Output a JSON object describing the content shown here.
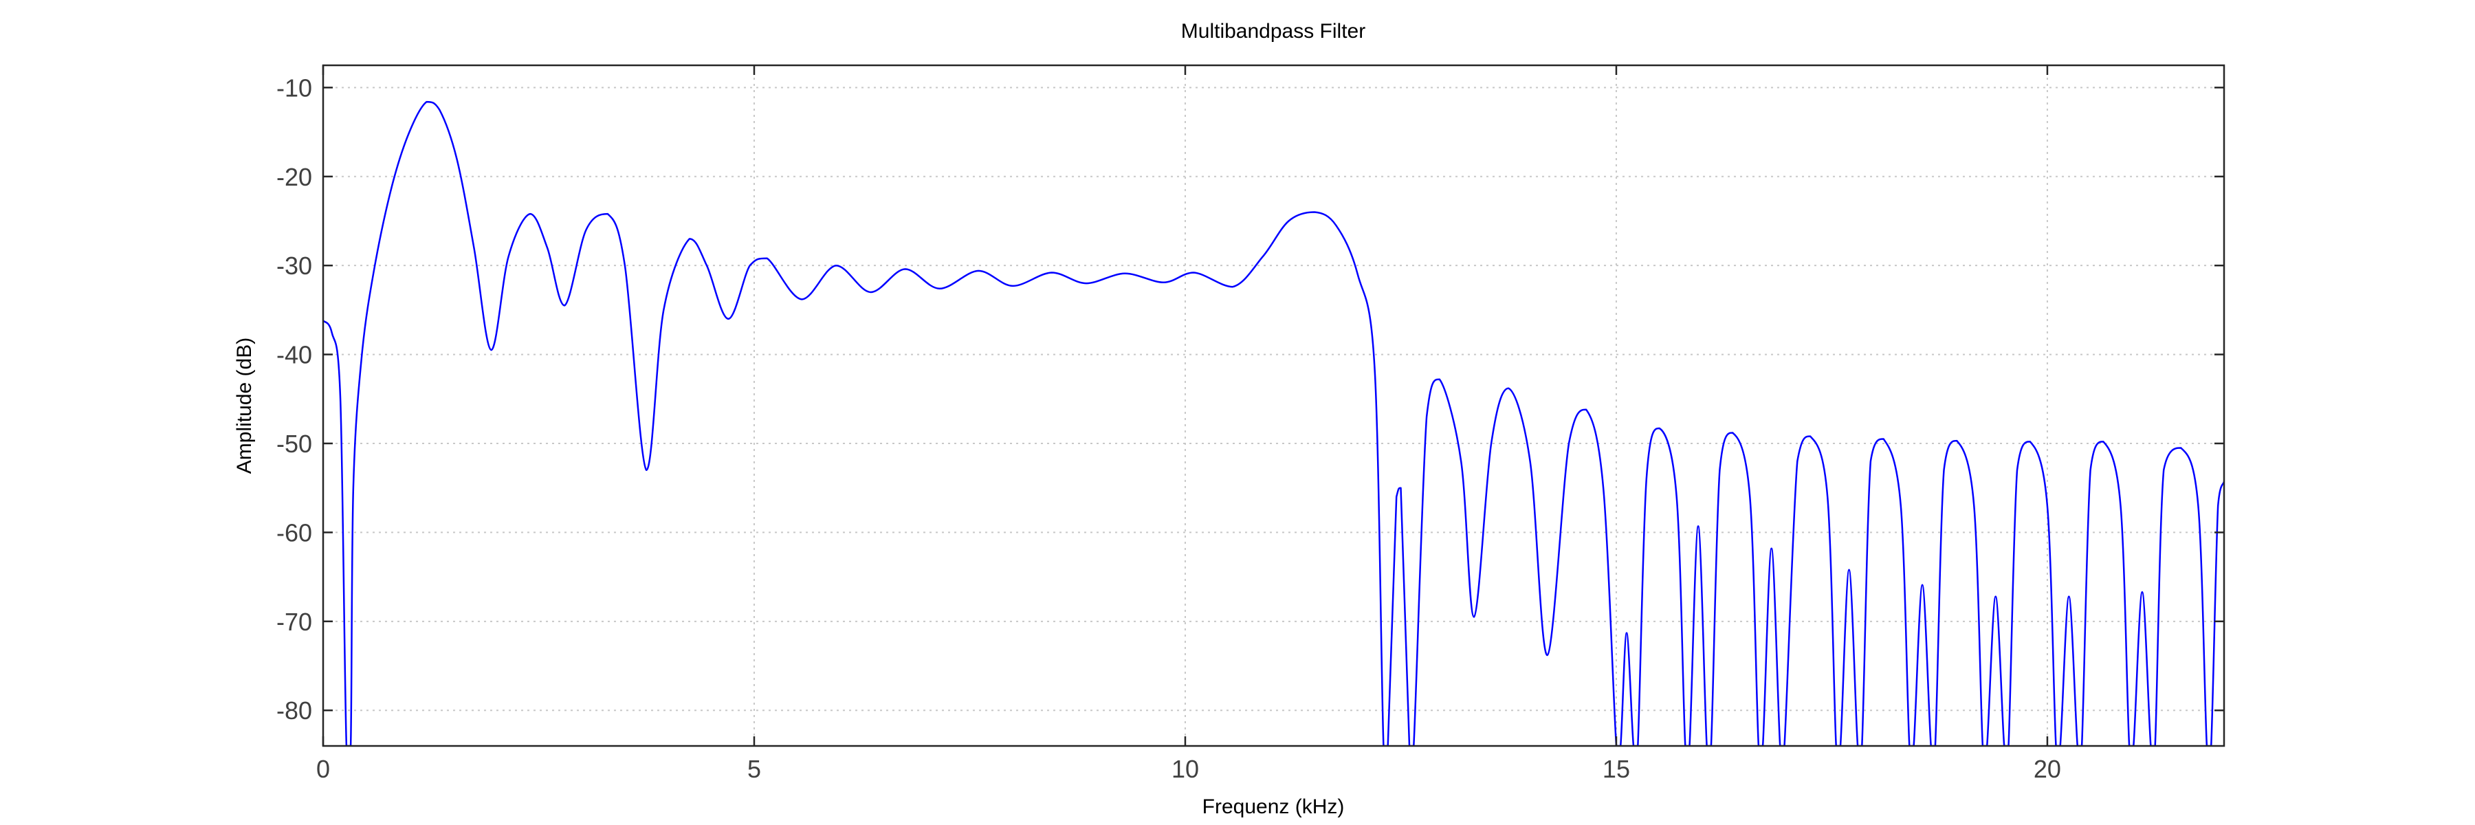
{
  "chart_data": {
    "type": "line",
    "title": "Multibandpass Filter",
    "xlabel": "Frequenz (kHz)",
    "ylabel": "Amplitude (dB)",
    "xlim": [
      0,
      22.05
    ],
    "ylim": [
      -84,
      -7.5
    ],
    "xticks": [
      0,
      5,
      10,
      15,
      20
    ],
    "yticks": [
      -80,
      -70,
      -60,
      -50,
      -40,
      -30,
      -20,
      -10
    ],
    "grid": true,
    "legend": "none",
    "color": "#0000ff",
    "series": [
      {
        "points": [
          [
            0.0,
            -36.2
          ],
          [
            0.1,
            -37.5
          ],
          [
            0.2,
            -45
          ],
          [
            0.27,
            -84
          ],
          [
            0.32,
            -84
          ],
          [
            0.35,
            -55
          ],
          [
            0.45,
            -40
          ],
          [
            0.6,
            -30
          ],
          [
            0.8,
            -21
          ],
          [
            1.0,
            -15
          ],
          [
            1.2,
            -11.6
          ],
          [
            1.35,
            -12.5
          ],
          [
            1.55,
            -18
          ],
          [
            1.75,
            -28
          ],
          [
            1.95,
            -39.5
          ],
          [
            2.15,
            -29
          ],
          [
            2.4,
            -24.2
          ],
          [
            2.6,
            -28
          ],
          [
            2.8,
            -34.5
          ],
          [
            3.05,
            -26
          ],
          [
            3.3,
            -24.2
          ],
          [
            3.5,
            -30
          ],
          [
            3.75,
            -53
          ],
          [
            3.95,
            -35
          ],
          [
            4.25,
            -27
          ],
          [
            4.45,
            -30
          ],
          [
            4.7,
            -36
          ],
          [
            4.95,
            -30
          ],
          [
            5.15,
            -29.2
          ],
          [
            5.55,
            -33.8
          ],
          [
            5.95,
            -30
          ],
          [
            6.35,
            -33
          ],
          [
            6.75,
            -30.4
          ],
          [
            7.15,
            -32.6
          ],
          [
            7.6,
            -30.6
          ],
          [
            8.0,
            -32.3
          ],
          [
            8.45,
            -30.8
          ],
          [
            8.85,
            -32
          ],
          [
            9.3,
            -30.9
          ],
          [
            9.75,
            -31.9
          ],
          [
            10.1,
            -30.8
          ],
          [
            10.55,
            -32.4
          ],
          [
            10.9,
            -29
          ],
          [
            11.2,
            -25
          ],
          [
            11.5,
            -24
          ],
          [
            11.75,
            -25.5
          ],
          [
            12.0,
            -31
          ],
          [
            12.2,
            -42
          ],
          [
            12.3,
            -84
          ],
          [
            12.35,
            -84
          ],
          [
            12.45,
            -56
          ],
          [
            12.5,
            -55
          ],
          [
            12.6,
            -84
          ],
          [
            12.65,
            -84
          ],
          [
            12.8,
            -47
          ],
          [
            12.95,
            -42.8
          ],
          [
            13.2,
            -52
          ],
          [
            13.35,
            -69.5
          ],
          [
            13.55,
            -50
          ],
          [
            13.75,
            -43.8
          ],
          [
            14.0,
            -52
          ],
          [
            14.2,
            -73.8
          ],
          [
            14.45,
            -50
          ],
          [
            14.65,
            -46.2
          ],
          [
            14.85,
            -55
          ],
          [
            15.0,
            -84
          ],
          [
            15.05,
            -84
          ],
          [
            15.12,
            -71.3
          ],
          [
            15.2,
            -84
          ],
          [
            15.25,
            -84
          ],
          [
            15.35,
            -54
          ],
          [
            15.5,
            -48.3
          ],
          [
            15.7,
            -56
          ],
          [
            15.8,
            -84
          ],
          [
            15.85,
            -84
          ],
          [
            15.95,
            -59.3
          ],
          [
            16.05,
            -84
          ],
          [
            16.1,
            -84
          ],
          [
            16.2,
            -53
          ],
          [
            16.35,
            -48.8
          ],
          [
            16.55,
            -56
          ],
          [
            16.65,
            -84
          ],
          [
            16.7,
            -84
          ],
          [
            16.8,
            -61.8
          ],
          [
            16.9,
            -84
          ],
          [
            16.95,
            -84
          ],
          [
            17.1,
            -52
          ],
          [
            17.25,
            -49.2
          ],
          [
            17.45,
            -56
          ],
          [
            17.55,
            -84
          ],
          [
            17.6,
            -84
          ],
          [
            17.7,
            -64.2
          ],
          [
            17.8,
            -84
          ],
          [
            17.85,
            -84
          ],
          [
            17.95,
            -52
          ],
          [
            18.1,
            -49.5
          ],
          [
            18.3,
            -57
          ],
          [
            18.4,
            -84
          ],
          [
            18.45,
            -84
          ],
          [
            18.55,
            -65.9
          ],
          [
            18.65,
            -84
          ],
          [
            18.7,
            -84
          ],
          [
            18.8,
            -53
          ],
          [
            18.95,
            -49.7
          ],
          [
            19.15,
            -57
          ],
          [
            19.25,
            -84
          ],
          [
            19.3,
            -84
          ],
          [
            19.4,
            -67.2
          ],
          [
            19.5,
            -84
          ],
          [
            19.55,
            -84
          ],
          [
            19.65,
            -53
          ],
          [
            19.8,
            -49.8
          ],
          [
            20.0,
            -57
          ],
          [
            20.1,
            -84
          ],
          [
            20.15,
            -84
          ],
          [
            20.25,
            -67.2
          ],
          [
            20.35,
            -84
          ],
          [
            20.4,
            -84
          ],
          [
            20.5,
            -53
          ],
          [
            20.65,
            -49.8
          ],
          [
            20.85,
            -57
          ],
          [
            20.95,
            -84
          ],
          [
            21.0,
            -84
          ],
          [
            21.1,
            -66.7
          ],
          [
            21.2,
            -84
          ],
          [
            21.25,
            -84
          ],
          [
            21.35,
            -53
          ],
          [
            21.55,
            -50.5
          ],
          [
            21.75,
            -57
          ],
          [
            21.85,
            -84
          ],
          [
            21.9,
            -84
          ],
          [
            21.98,
            -57
          ],
          [
            22.05,
            -54.3
          ]
        ]
      }
    ]
  }
}
